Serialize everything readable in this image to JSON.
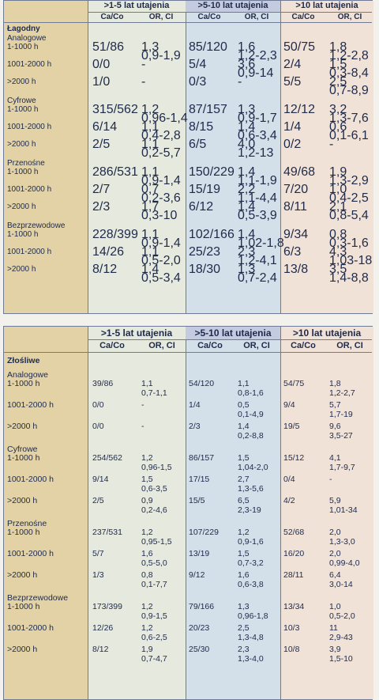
{
  "tables": [
    {
      "groups": [
        ">1-5 lat utajenia",
        ">5-10 lat utajenia",
        ">10 lat utajenia"
      ],
      "subheaders": [
        "Ca/Co",
        "OR, CI"
      ],
      "category": "Łagodny",
      "sections": [
        {
          "name": "Analogowe",
          "rows": [
            {
              "label": "1-1000 h",
              "v": [
                "51/86",
                "1,3\n0,9-1,9",
                "85/120",
                "1,6\n1,2-2,3",
                "50/75",
                "1,8\n1,2-2,8"
              ]
            },
            {
              "label": "1001-2000 h",
              "v": [
                "0/0",
                "-",
                "5/4",
                "3,6\n0,9-14",
                "2/4",
                "1,5\n0,3-8,4"
              ]
            },
            {
              "label": ">2000 h",
              "v": [
                "1/0",
                "-",
                "0/3",
                "-",
                "5/5",
                "2,5\n0,7-8,9"
              ]
            }
          ]
        },
        {
          "name": "Cyfrowe",
          "rows": [
            {
              "label": "1-1000 h",
              "v": [
                "315/562",
                "1,2\n0,96-1,4",
                "87/157",
                "1,3\n0,9-1,7",
                "12/12",
                "3,2\n1,3-7,6"
              ]
            },
            {
              "label": "1001-2000 h",
              "v": [
                "6/14",
                "1,1\n0,4-2,8",
                "8/15",
                "1,4\n0,6-3,4",
                "1/4",
                "0,6\n0,1-6,1"
              ]
            },
            {
              "label": ">2000 h",
              "v": [
                "2/5",
                "1,1\n0,2-5,7",
                "6/5",
                "4,0\n1,2-13",
                "0/2",
                "-"
              ]
            }
          ]
        },
        {
          "name": "Przenośne",
          "rows": [
            {
              "label": "1-1000 h",
              "v": [
                "286/531",
                "1,1\n0,9-1,4",
                "150/229",
                "1,4\n1,1-1,9",
                "49/68",
                "1,9\n1,3-2,9"
              ]
            },
            {
              "label": "1001-2000 h",
              "v": [
                "2/7",
                "0,7\n0,2-3,6",
                "15/19",
                "2,2\n1,1-4,4",
                "7/20",
                "1,0\n0,4-2,5"
              ]
            },
            {
              "label": ">2000 h",
              "v": [
                "2/3",
                "1,7\n0,3-10",
                "6/12",
                "1,4\n0,5-3,9",
                "8/11",
                "2,1\n0,8-5,4"
              ]
            }
          ]
        },
        {
          "name": "Bezprzewodowe",
          "rows": [
            {
              "label": "1-1000 h",
              "v": [
                "228/399",
                "1,1\n0,9-1,4",
                "102/166",
                "1,4\n1,02-1,8",
                "9/34",
                "0,8\n0,3-1,6"
              ]
            },
            {
              "label": "1001-2000 h",
              "v": [
                "14/26",
                "1,1\n0,5-2,0",
                "25/23",
                "2,3\n1,2-4,1",
                "6/3",
                "4,3\n1,03-18"
              ]
            },
            {
              "label": ">2000 h",
              "v": [
                "8/12",
                "1,4\n0,5-3,4",
                "18/30",
                "1,3\n0,7-2,4",
                "13/8",
                "3,5\n1,4-8,8"
              ]
            }
          ]
        }
      ]
    },
    {
      "groups": [
        ">1-5 lat utajenia",
        ">5-10 lat utajenia",
        ">10 lat utajenia"
      ],
      "subheaders": [
        "Ca/Co",
        "OR, CI"
      ],
      "category": "Złośliwe",
      "sections": [
        {
          "name": "Analogowe",
          "rows": [
            {
              "label": "1-1000 h",
              "v": [
                "39/86",
                "1,1\n0,7-1,1",
                "54/120",
                "1,1\n0,8-1,6",
                "54/75",
                "1,8\n1,2-2,7"
              ]
            },
            {
              "label": "1001-2000 h",
              "v": [
                "0/0",
                "-",
                "1/4",
                "0,5\n0,1-4,9",
                "9/4",
                "5,7\n1,7-19"
              ]
            },
            {
              "label": ">2000 h",
              "v": [
                "0/0",
                "-",
                "2/3",
                "1,4\n0,2-8,8",
                "19/5",
                "9,6\n3,5-27"
              ]
            }
          ]
        },
        {
          "name": "Cyfrowe",
          "rows": [
            {
              "label": "1-1000 h",
              "v": [
                "254/562",
                "1,2\n0,96-1,5",
                "86/157",
                "1,5\n1,04-2,0",
                "15/12",
                "4,1\n1,7-9,7"
              ]
            },
            {
              "label": "1001-2000 h",
              "v": [
                "9/14",
                "1,5\n0,6-3,5",
                "17/15",
                "2,7\n1,3-5,6",
                "0/4",
                "-"
              ]
            },
            {
              "label": ">2000 h",
              "v": [
                "2/5",
                "0,9\n0,2-4,6",
                "15/5",
                "6,5\n2,3-19",
                "4/2",
                "5,9\n1,01-34"
              ]
            }
          ]
        },
        {
          "name": "Przenośne",
          "rows": [
            {
              "label": "1-1000 h",
              "v": [
                "237/531",
                "1,2\n0,95-1,5",
                "107/229",
                "1,2\n0,9-1,6",
                "52/68",
                "2,0\n1,3-3,0"
              ]
            },
            {
              "label": "1001-2000 h",
              "v": [
                "5/7",
                "1,6\n0,5-5,0",
                "13/19",
                "1,5\n0,7-3,2",
                "16/20",
                "2,0\n0,99-4,0"
              ]
            },
            {
              "label": ">2000 h",
              "v": [
                "1/3",
                "0,8\n0,1-7,7",
                "9/12",
                "1,6\n0,6-3,8",
                "28/11",
                "6,4\n3,0-14"
              ]
            }
          ]
        },
        {
          "name": "Bezprzewodowe",
          "rows": [
            {
              "label": "1-1000 h",
              "v": [
                "173/399",
                "1,2\n0,9-1,5",
                "79/166",
                "1,3\n0,96-1,8",
                "13/34",
                "1,0\n0,5-2,0"
              ]
            },
            {
              "label": "1001-2000 h",
              "v": [
                "12/26",
                "1,2\n0,6-2,5",
                "20/23",
                "2,5\n1,3-4,8",
                "10/3",
                "11\n2,9-43"
              ]
            },
            {
              "label": ">2000 h",
              "v": [
                "8/12",
                "1,9\n0,7-4,7",
                "25/30",
                "2,3\n1,3-4,0",
                "10/8",
                "3,9\n1,5-10"
              ]
            }
          ]
        }
      ]
    }
  ]
}
